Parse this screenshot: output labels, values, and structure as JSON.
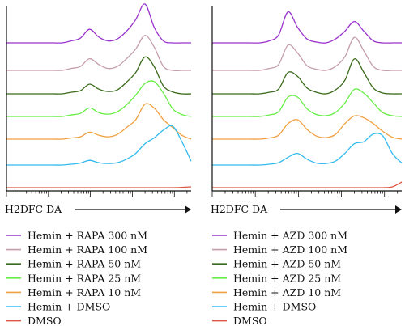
{
  "chart_data": [
    {
      "type": "line",
      "panel": "left",
      "xlabel": "H2DFC DA",
      "x": [
        0,
        0.05,
        0.1,
        0.15,
        0.2,
        0.25,
        0.3,
        0.35,
        0.4,
        0.45,
        0.5,
        0.55,
        0.6,
        0.65,
        0.7,
        0.75,
        0.8,
        0.85,
        0.9,
        0.95,
        1.0
      ],
      "series": [
        {
          "name": "Hemin + RAPA 300 nM",
          "color": "#9933cc",
          "values": [
            0,
            0,
            0,
            0,
            0,
            0,
            0,
            0.05,
            0.12,
            0.35,
            0.15,
            0.05,
            0.1,
            0.3,
            0.6,
            1.0,
            0.4,
            0.05,
            0,
            0,
            0
          ]
        },
        {
          "name": "Hemin + RAPA 100 nM",
          "color": "#c49ea8",
          "values": [
            0,
            0,
            0,
            0,
            0,
            0,
            0,
            0.05,
            0.1,
            0.3,
            0.15,
            0.05,
            0.1,
            0.3,
            0.55,
            0.9,
            0.6,
            0.1,
            0,
            0,
            0
          ]
        },
        {
          "name": "Hemin + RAPA 50 nM",
          "color": "#3a6a1a",
          "values": [
            0,
            0,
            0,
            0,
            0,
            0,
            0,
            0.04,
            0.08,
            0.25,
            0.12,
            0.06,
            0.1,
            0.3,
            0.55,
            0.95,
            0.7,
            0.2,
            0.05,
            0,
            0
          ]
        },
        {
          "name": "Hemin + RAPA 25 nM",
          "color": "#66ee44",
          "values": [
            0,
            0,
            0,
            0,
            0,
            0,
            0,
            0.04,
            0.08,
            0.22,
            0.1,
            0.06,
            0.12,
            0.3,
            0.55,
            0.85,
            0.9,
            0.6,
            0.2,
            0.05,
            0
          ]
        },
        {
          "name": "Hemin + RAPA 10 nM",
          "color": "#f0a040",
          "values": [
            0,
            0,
            0,
            0,
            0,
            0,
            0,
            0.03,
            0.06,
            0.18,
            0.1,
            0.06,
            0.12,
            0.3,
            0.5,
            0.9,
            0.8,
            0.5,
            0.3,
            0.1,
            0
          ]
        },
        {
          "name": "Hemin + DMSO",
          "color": "#33bbee",
          "values": [
            0,
            0,
            0,
            0,
            0,
            0,
            0,
            0.02,
            0.05,
            0.12,
            0.06,
            0.04,
            0.06,
            0.15,
            0.3,
            0.55,
            0.7,
            0.9,
            1.0,
            0.6,
            0.1
          ]
        },
        {
          "name": "DMSO",
          "color": "#dd5544",
          "values": [
            0,
            0,
            0,
            0,
            0,
            0,
            0,
            0,
            0,
            0,
            0,
            0,
            0,
            0,
            0,
            0,
            0,
            0,
            0,
            0.02,
            0.05
          ]
        }
      ]
    },
    {
      "type": "line",
      "panel": "right",
      "xlabel": "H2DFC DA",
      "x": [
        0,
        0.05,
        0.1,
        0.15,
        0.2,
        0.25,
        0.3,
        0.35,
        0.4,
        0.45,
        0.5,
        0.55,
        0.6,
        0.65,
        0.7,
        0.75,
        0.8,
        0.85,
        0.9,
        0.95,
        1.0
      ],
      "series": [
        {
          "name": "Hemin + AZD 300 nM",
          "color": "#9933cc",
          "values": [
            0,
            0,
            0,
            0,
            0,
            0,
            0.05,
            0.2,
            0.8,
            0.4,
            0.1,
            0.02,
            0,
            0.1,
            0.3,
            0.55,
            0.3,
            0.05,
            0,
            0,
            0
          ]
        },
        {
          "name": "Hemin + AZD 100 nM",
          "color": "#c49ea8",
          "values": [
            0,
            0,
            0,
            0,
            0,
            0,
            0.05,
            0.15,
            0.65,
            0.45,
            0.12,
            0.03,
            0,
            0.1,
            0.35,
            0.85,
            0.5,
            0.1,
            0,
            0,
            0
          ]
        },
        {
          "name": "Hemin + AZD 50 nM",
          "color": "#3a6a1a",
          "values": [
            0,
            0,
            0,
            0,
            0,
            0,
            0.04,
            0.12,
            0.55,
            0.45,
            0.15,
            0.04,
            0,
            0.1,
            0.35,
            0.9,
            0.55,
            0.15,
            0.02,
            0,
            0
          ]
        },
        {
          "name": "Hemin + AZD 25 nM",
          "color": "#66ee44",
          "values": [
            0,
            0,
            0,
            0,
            0,
            0,
            0.04,
            0.12,
            0.5,
            0.5,
            0.2,
            0.05,
            0.02,
            0.1,
            0.35,
            0.7,
            0.6,
            0.35,
            0.1,
            0.02,
            0
          ]
        },
        {
          "name": "Hemin + AZD 10 nM",
          "color": "#f0a040",
          "values": [
            0,
            0,
            0,
            0,
            0,
            0,
            0.03,
            0.1,
            0.4,
            0.5,
            0.25,
            0.08,
            0.04,
            0.12,
            0.4,
            0.6,
            0.55,
            0.4,
            0.2,
            0.05,
            0
          ]
        },
        {
          "name": "Hemin + DMSO",
          "color": "#33bbee",
          "values": [
            0,
            0,
            0,
            0,
            0,
            0,
            0.02,
            0.06,
            0.2,
            0.3,
            0.15,
            0.05,
            0.04,
            0.1,
            0.3,
            0.55,
            0.6,
            0.8,
            0.75,
            0.3,
            0.05
          ]
        },
        {
          "name": "DMSO",
          "color": "#dd5544",
          "values": [
            0,
            0,
            0,
            0,
            0,
            0,
            0,
            0,
            0,
            0,
            0,
            0,
            0,
            0,
            0,
            0,
            0,
            0,
            0,
            0.05,
            0.35
          ]
        }
      ]
    }
  ]
}
